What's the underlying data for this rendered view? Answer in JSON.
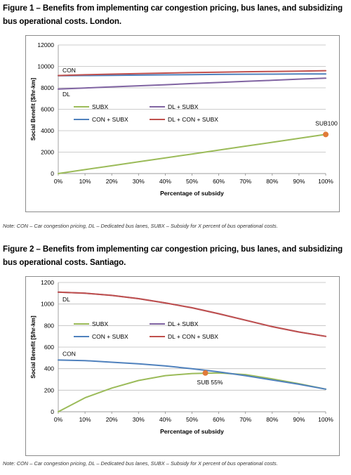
{
  "figures": [
    {
      "title": "Figure 1 – Benefits from implementing car congestion pricing, bus lanes, and subsidizing bus operational costs. London.",
      "note": "Note: CON – Car congestion pricing, DL – Dedicated bus lanes, SUBX – Subsidy for X percent of bus operational costs."
    },
    {
      "title": "Figure 2 – Benefits from implementing car congestion pricing, bus lanes, and subsidizing bus operational costs. Santiago.",
      "note": "Note: CON – Car congestion pricing, DL – Dedicated bus lanes, SUBX – Subsidy for X percent of bus operational costs."
    }
  ],
  "chart_data": [
    {
      "type": "line",
      "xlabel": "Percentage of subsidy",
      "ylabel": "Social Benefit [$/hr-km]",
      "x": [
        0,
        10,
        20,
        30,
        40,
        50,
        60,
        70,
        80,
        90,
        100
      ],
      "x_tick_labels": [
        "0%",
        "10%",
        "20%",
        "30%",
        "40%",
        "50%",
        "60%",
        "70%",
        "80%",
        "90%",
        "100%"
      ],
      "ylim": [
        0,
        12000
      ],
      "y_ticks": [
        0,
        2000,
        4000,
        6000,
        8000,
        10000,
        12000
      ],
      "series": [
        {
          "name": "SUBX",
          "color": "#9bbb59",
          "values": [
            0,
            365,
            730,
            1095,
            1460,
            1825,
            2190,
            2555,
            2920,
            3285,
            3650
          ]
        },
        {
          "name": "DL + SUBX",
          "color": "#8064a2",
          "values": [
            7880,
            7990,
            8090,
            8190,
            8290,
            8400,
            8500,
            8600,
            8700,
            8810,
            8900
          ]
        },
        {
          "name": "CON + SUBX",
          "color": "#4f81bd",
          "values": [
            9130,
            9150,
            9170,
            9190,
            9210,
            9230,
            9250,
            9270,
            9280,
            9290,
            9300
          ]
        },
        {
          "name": "DL + CON + SUBX",
          "color": "#c0504d",
          "values": [
            9150,
            9220,
            9280,
            9330,
            9380,
            9430,
            9460,
            9500,
            9530,
            9560,
            9600
          ]
        }
      ],
      "annotations": [
        {
          "label": "CON",
          "x": 0,
          "y": 9130
        },
        {
          "label": "DL",
          "x": 0,
          "y": 7880
        },
        {
          "label": "SUB100",
          "x": 100,
          "y": 3650,
          "marker_color": "#e07b39"
        }
      ],
      "legend": "inside-center",
      "grid": "horizontal"
    },
    {
      "type": "line",
      "xlabel": "Percentage of subsidy",
      "ylabel": "Social Benefit [$/hr-km]",
      "x": [
        0,
        10,
        20,
        30,
        40,
        50,
        60,
        70,
        80,
        90,
        100
      ],
      "x_tick_labels": [
        "0%",
        "10%",
        "20%",
        "30%",
        "40%",
        "50%",
        "60%",
        "70%",
        "80%",
        "90%",
        "100%"
      ],
      "ylim": [
        0,
        1200
      ],
      "y_ticks": [
        0,
        200,
        400,
        600,
        800,
        1000,
        1200
      ],
      "series": [
        {
          "name": "SUBX",
          "color": "#9bbb59",
          "values": [
            0,
            130,
            220,
            290,
            335,
            355,
            360,
            345,
            305,
            260,
            210
          ]
        },
        {
          "name": "DL + SUBX",
          "color": "#8064a2",
          "values": [
            1110,
            1100,
            1080,
            1050,
            1010,
            965,
            910,
            850,
            790,
            740,
            700
          ]
        },
        {
          "name": "CON + SUBX",
          "color": "#4f81bd",
          "values": [
            480,
            475,
            460,
            445,
            425,
            400,
            370,
            335,
            295,
            255,
            210
          ]
        },
        {
          "name": "DL + CON + SUBX",
          "color": "#c0504d",
          "values": [
            1110,
            1100,
            1080,
            1050,
            1010,
            965,
            910,
            850,
            790,
            740,
            700
          ]
        }
      ],
      "annotations": [
        {
          "label": "DL",
          "x": 0,
          "y": 1110
        },
        {
          "label": "CON",
          "x": 0,
          "y": 480
        },
        {
          "label": "SUB 55%",
          "x": 55,
          "y": 360,
          "marker_color": "#e07b39"
        }
      ],
      "legend": "inside-center",
      "grid": "horizontal"
    }
  ]
}
